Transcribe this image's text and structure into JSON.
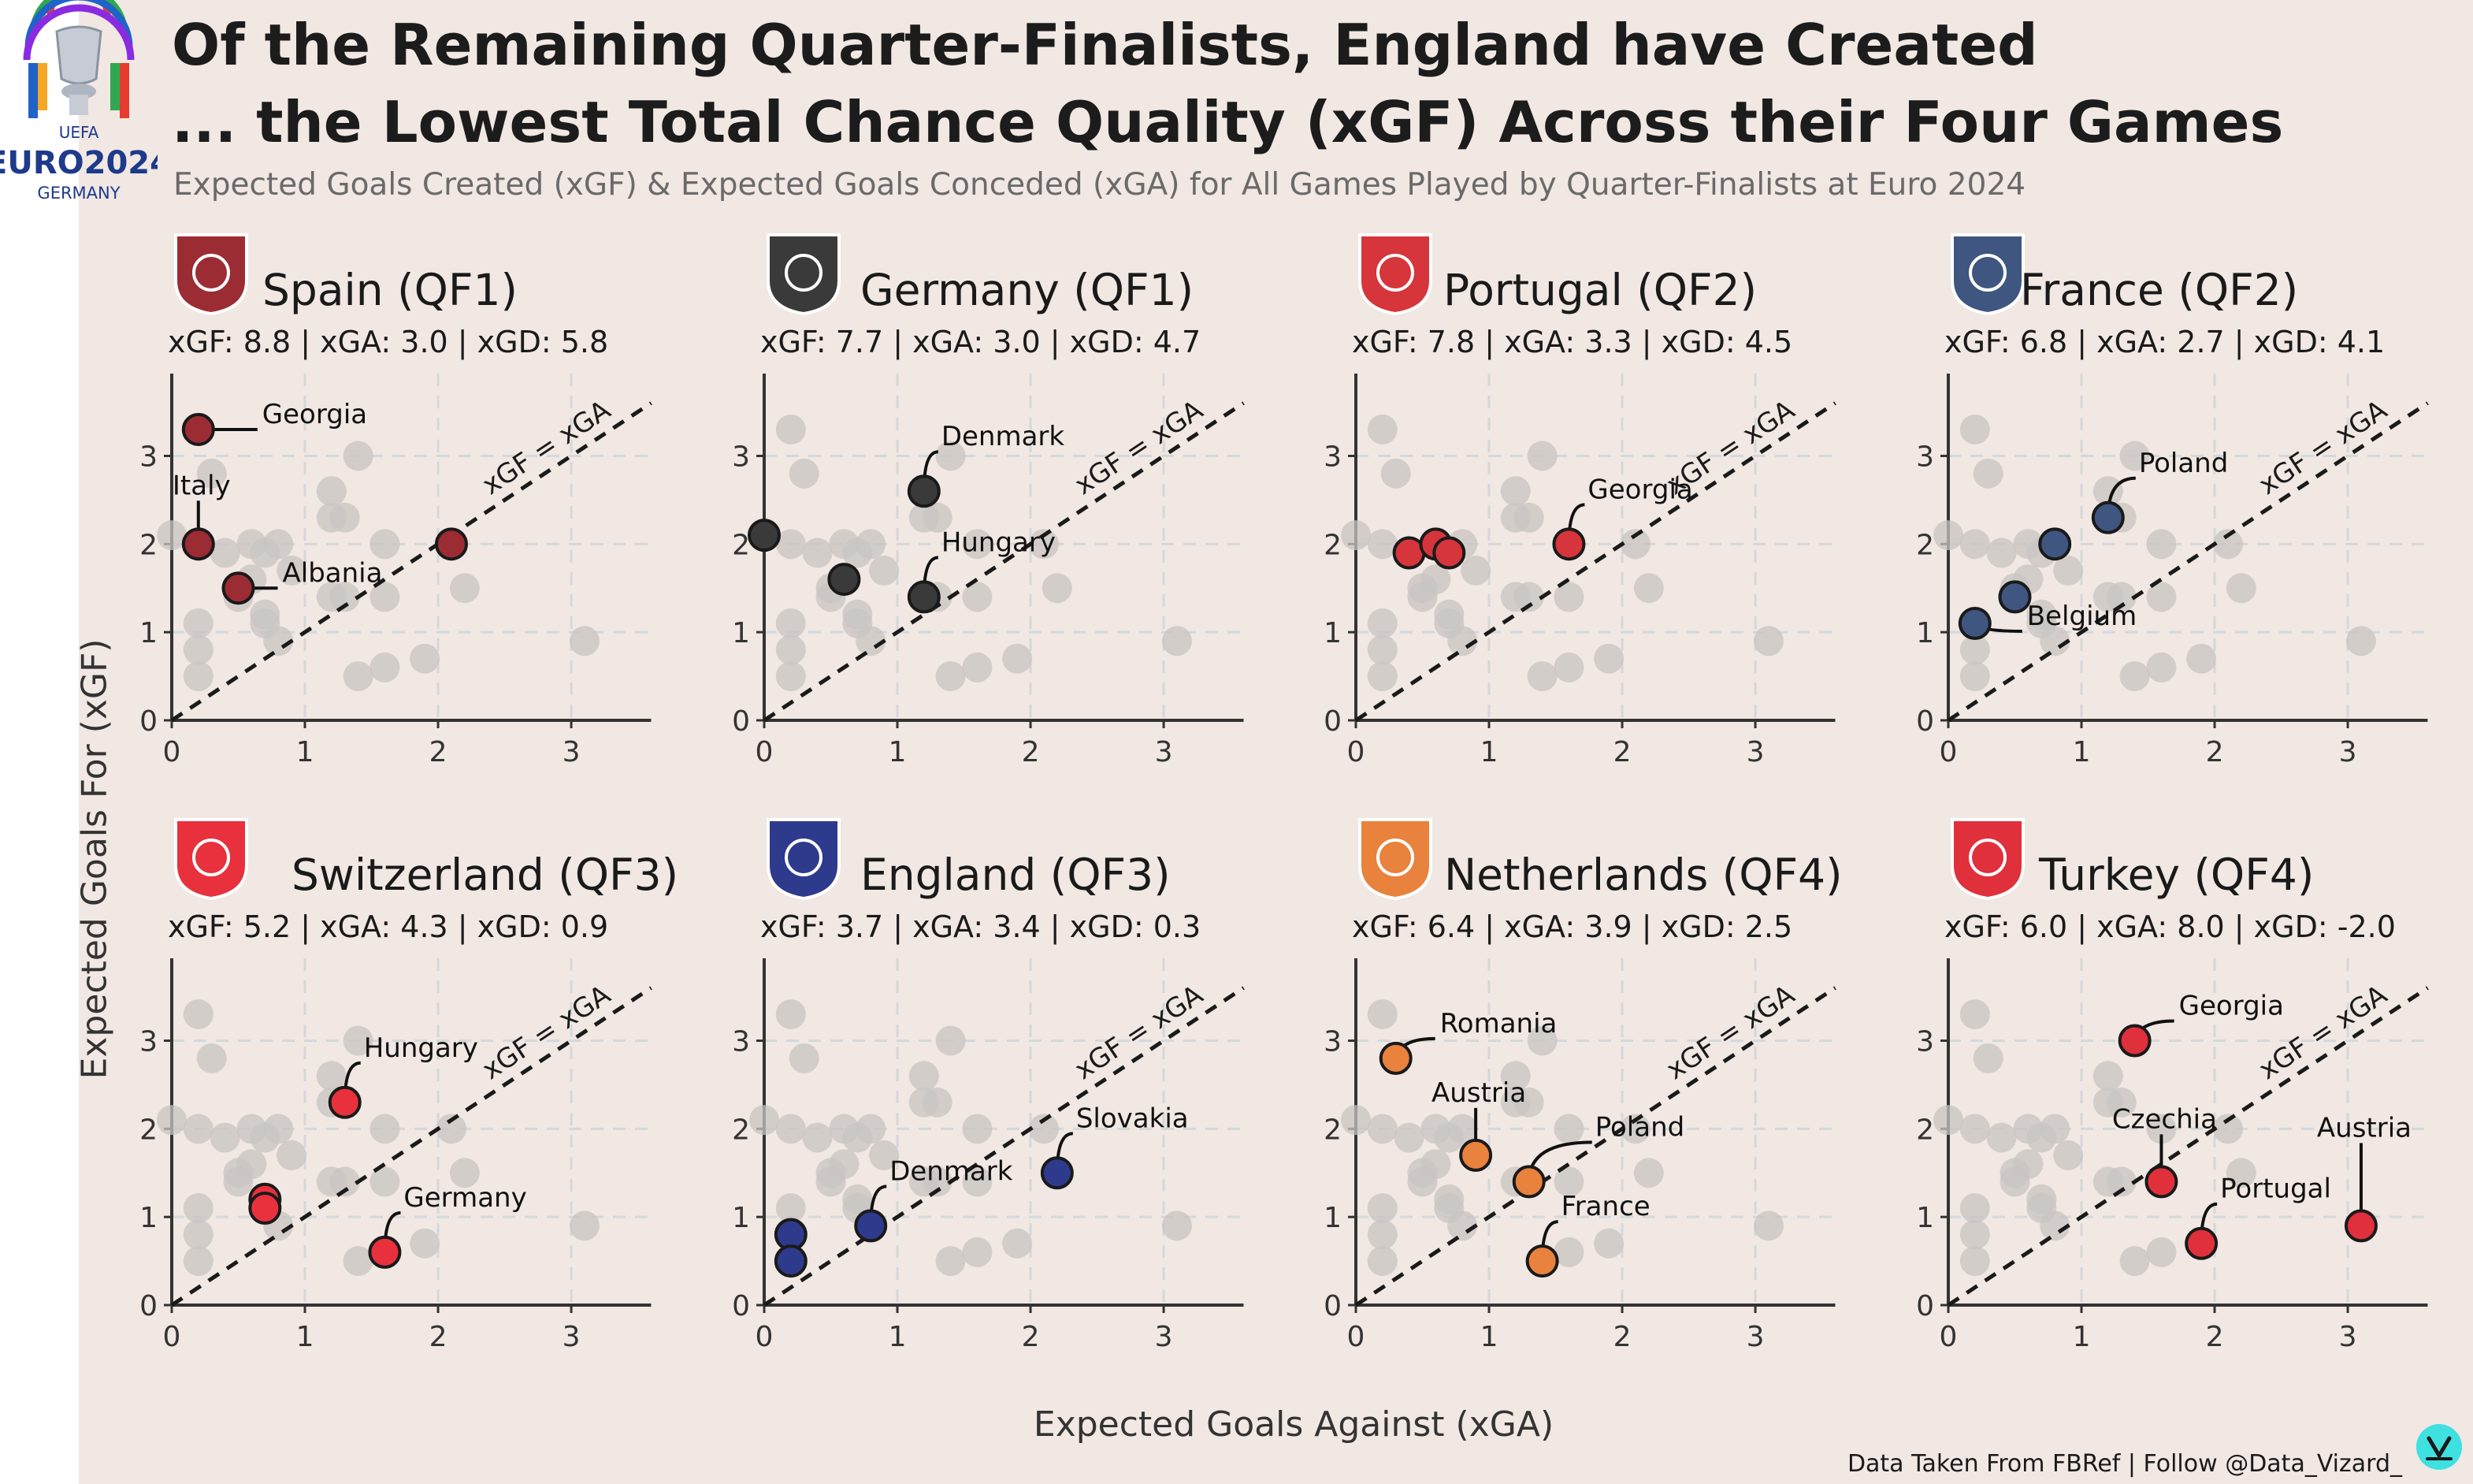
{
  "title_lines": [
    "Of the Remaining Quarter-Finalists, England have Created",
    "... the Lowest Total Chance Quality (xGF) Across their Four Games"
  ],
  "subtitle": "Expected Goals Created (xGF) & Expected Goals Conceded (xGA) for All Games Played by Quarter-Finalists at Euro 2024",
  "logo": {
    "text_lines": [
      "UEFA",
      "EURO2024",
      "GERMANY"
    ],
    "icon": "euro-2024-trophy-logo"
  },
  "source_note": "Data Taken From FBRef | Follow @Data_Vizard_",
  "brand_icon": "data-vizard-icon",
  "colors": {
    "background": "#f1e7e3",
    "grey_points": "#c8c4c2",
    "diagonal": "#1a1a1a",
    "Spain": "#9c2c33",
    "Germany": "#3a3a3a",
    "Portugal": "#d6353b",
    "France": "#3e5680",
    "Switzerland": "#e8313c",
    "England": "#2e3a8c",
    "Netherlands": "#e8823c",
    "Turkey": "#e0303c"
  },
  "chart_data": {
    "type": "scatter",
    "xlabel": "Expected Goals Against (xGA)",
    "ylabel": "Expected Goals For (xGF)",
    "xlim": [
      0,
      3.6
    ],
    "ylim": [
      0,
      3.6
    ],
    "x_ticks": [
      0,
      1,
      2,
      3
    ],
    "y_ticks": [
      0,
      1,
      2,
      3
    ],
    "grid": "dashed",
    "reference_line_label": "xGF = xGA",
    "facets": [
      {
        "team": "Spain (QF1)",
        "crest": "spain-crest-icon",
        "stats": "xGF: 8.8 | xGA: 3.0 | xGD: 5.8",
        "points": [
          {
            "x": 0.2,
            "y": 3.3,
            "label": "Georgia"
          },
          {
            "x": 0.2,
            "y": 2.0,
            "label": "Italy"
          },
          {
            "x": 0.5,
            "y": 1.5,
            "label": "Albania"
          },
          {
            "x": 2.1,
            "y": 2.0,
            "label": ""
          }
        ]
      },
      {
        "team": "Germany (QF1)",
        "crest": "germany-crest-icon",
        "stats": "xGF: 7.7 | xGA: 3.0 | xGD: 4.7",
        "points": [
          {
            "x": 0.0,
            "y": 2.1,
            "label": ""
          },
          {
            "x": 0.6,
            "y": 1.6,
            "label": ""
          },
          {
            "x": 1.2,
            "y": 2.6,
            "label": "Denmark"
          },
          {
            "x": 1.2,
            "y": 1.4,
            "label": "Hungary"
          }
        ]
      },
      {
        "team": "Portugal (QF2)",
        "crest": "portugal-crest-icon",
        "stats": "xGF: 7.8 | xGA: 3.3 | xGD: 4.5",
        "points": [
          {
            "x": 0.4,
            "y": 1.9,
            "label": ""
          },
          {
            "x": 0.6,
            "y": 2.0,
            "label": ""
          },
          {
            "x": 0.7,
            "y": 1.9,
            "label": ""
          },
          {
            "x": 1.6,
            "y": 2.0,
            "label": "Georgia"
          }
        ]
      },
      {
        "team": "France (QF2)",
        "crest": "france-crest-icon",
        "stats": "xGF: 6.8 | xGA: 2.7 | xGD: 4.1",
        "points": [
          {
            "x": 0.2,
            "y": 1.1,
            "label": "Belgium"
          },
          {
            "x": 0.5,
            "y": 1.4,
            "label": ""
          },
          {
            "x": 0.8,
            "y": 2.0,
            "label": ""
          },
          {
            "x": 1.2,
            "y": 2.3,
            "label": "Poland"
          }
        ]
      },
      {
        "team": "Switzerland (QF3)",
        "crest": "switzerland-crest-icon",
        "stats": "xGF: 5.2 | xGA: 4.3 | xGD: 0.9",
        "points": [
          {
            "x": 0.7,
            "y": 1.2,
            "label": ""
          },
          {
            "x": 0.7,
            "y": 1.1,
            "label": ""
          },
          {
            "x": 1.3,
            "y": 2.3,
            "label": "Hungary"
          },
          {
            "x": 1.6,
            "y": 0.6,
            "label": "Germany"
          }
        ]
      },
      {
        "team": "England (QF3)",
        "crest": "england-crest-icon",
        "stats": "xGF: 3.7 | xGA: 3.4 | xGD: 0.3",
        "points": [
          {
            "x": 0.2,
            "y": 0.8,
            "label": ""
          },
          {
            "x": 0.2,
            "y": 0.5,
            "label": ""
          },
          {
            "x": 0.8,
            "y": 0.9,
            "label": "Denmark"
          },
          {
            "x": 2.2,
            "y": 1.5,
            "label": "Slovakia"
          }
        ]
      },
      {
        "team": "Netherlands (QF4)",
        "crest": "netherlands-crest-icon",
        "stats": "xGF: 6.4 | xGA: 3.9 | xGD: 2.5",
        "points": [
          {
            "x": 0.3,
            "y": 2.8,
            "label": "Romania"
          },
          {
            "x": 0.9,
            "y": 1.7,
            "label": "Austria"
          },
          {
            "x": 1.3,
            "y": 1.4,
            "label": "Poland"
          },
          {
            "x": 1.4,
            "y": 0.5,
            "label": "France"
          }
        ]
      },
      {
        "team": "Turkey (QF4)",
        "crest": "turkey-crest-icon",
        "stats": "xGF: 6.0 | xGA: 8.0 | xGD: -2.0",
        "points": [
          {
            "x": 1.4,
            "y": 3.0,
            "label": "Georgia"
          },
          {
            "x": 1.6,
            "y": 1.4,
            "label": "Czechia"
          },
          {
            "x": 1.9,
            "y": 0.7,
            "label": "Portugal"
          },
          {
            "x": 3.1,
            "y": 0.9,
            "label": "Austria"
          }
        ]
      }
    ]
  }
}
